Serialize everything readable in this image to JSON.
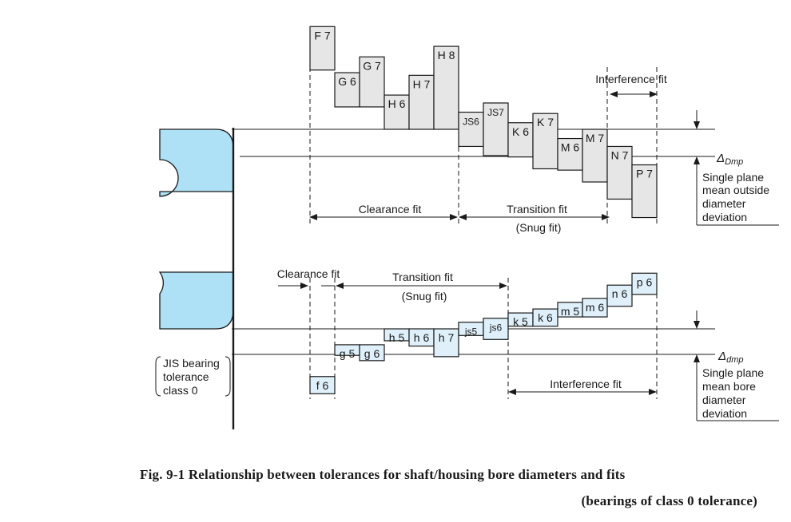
{
  "colors": {
    "housing_box": "#e6e6e6",
    "shaft_box": "#dff0fb",
    "bearing": "#aee0f6",
    "stroke": "#1a1a1a"
  },
  "housing": {
    "boxes": [
      {
        "label": "F 7",
        "top_um": 78,
        "bottom_um": 45
      },
      {
        "label": "G 6",
        "top_um": 43,
        "bottom_um": 17
      },
      {
        "label": "G 7",
        "top_um": 55,
        "bottom_um": 17
      },
      {
        "label": "H 6",
        "top_um": 26,
        "bottom_um": 0
      },
      {
        "label": "H 7",
        "top_um": 41,
        "bottom_um": 0
      },
      {
        "label": "H 8",
        "top_um": 63,
        "bottom_um": 0
      },
      {
        "label": "JS6",
        "top_um": 13,
        "bottom_um": -13
      },
      {
        "label": "JS7",
        "top_um": 20,
        "bottom_um": -20
      },
      {
        "label": "K 6",
        "top_um": 5,
        "bottom_um": -21
      },
      {
        "label": "K 7",
        "top_um": 12,
        "bottom_um": -30
      },
      {
        "label": "M 6",
        "top_um": -7,
        "bottom_um": -31
      },
      {
        "label": "M 7",
        "top_um": 0,
        "bottom_um": -40
      },
      {
        "label": "N 7",
        "top_um": -13,
        "bottom_um": -53
      },
      {
        "label": "P 7",
        "top_um": -27,
        "bottom_um": -67
      }
    ],
    "deviation_symbol": "Δ",
    "deviation_subscript": "Dmp",
    "deviation_desc": [
      "Single plane",
      "mean outside",
      "diameter",
      "deviation"
    ],
    "clearance_label": "Clearance fit",
    "transition_label": "Transition fit",
    "snug_label": "(Snug fit)",
    "interference_label": "Interference fit"
  },
  "shaft": {
    "boxes": [
      {
        "label": "f 6",
        "top_um": -36,
        "bottom_um": -49
      },
      {
        "label": "g 5",
        "top_um": -12,
        "bottom_um": -20
      },
      {
        "label": "g 6",
        "top_um": -12,
        "bottom_um": -24
      },
      {
        "label": "h 5",
        "top_um": 0,
        "bottom_um": -9
      },
      {
        "label": "h 6",
        "top_um": 0,
        "bottom_um": -13
      },
      {
        "label": "h 7",
        "top_um": 0,
        "bottom_um": -21
      },
      {
        "label": "js5",
        "top_um": 5,
        "bottom_um": -5
      },
      {
        "label": "js6",
        "top_um": 8,
        "bottom_um": -8
      },
      {
        "label": "k 5",
        "top_um": 12,
        "bottom_um": 2
      },
      {
        "label": "k 6",
        "top_um": 15,
        "bottom_um": 2
      },
      {
        "label": "m 5",
        "top_um": 20,
        "bottom_um": 9
      },
      {
        "label": "m 6",
        "top_um": 23,
        "bottom_um": 9
      },
      {
        "label": "n 6",
        "top_um": 33,
        "bottom_um": 17
      },
      {
        "label": "p 6",
        "top_um": 42,
        "bottom_um": 26
      }
    ],
    "deviation_symbol": "Δ",
    "deviation_subscript": "dmp",
    "deviation_desc": [
      "Single plane",
      "mean bore",
      "diameter",
      "deviation"
    ],
    "clearance_label": "Clearance fit",
    "transition_label": "Transition fit",
    "snug_label": "(Snug fit)",
    "interference_label": "Interference fit"
  },
  "jis_label": [
    "JIS bearing",
    "tolerance",
    "class 0"
  ],
  "caption": {
    "line1": "Fig. 9-1    Relationship between tolerances for shaft/housing bore diameters and fits",
    "line2": "(bearings of class 0 tolerance)"
  }
}
